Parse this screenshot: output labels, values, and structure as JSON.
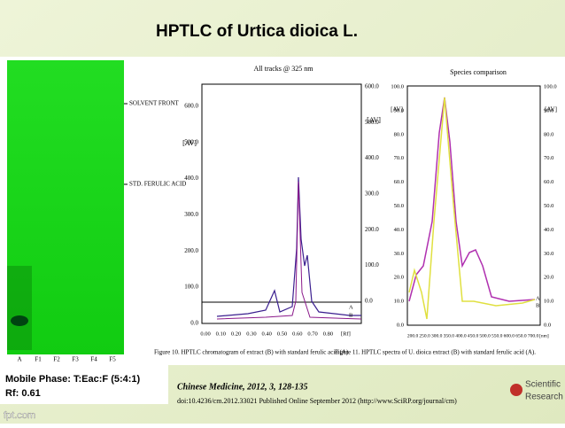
{
  "title": "HPTLC of Urtica dioica L.",
  "plate": {
    "markers": [
      "SOLVENT FRONT",
      "STD. FERULIC ACID"
    ],
    "lanes": [
      "A",
      "F1",
      "F2",
      "F3",
      "F4",
      "F5"
    ]
  },
  "figure10": {
    "title": "All tracks @ 325 nm",
    "y_label": "[AV]",
    "left_ticks": [
      "600.0",
      "500.0",
      "400.0",
      "300.0",
      "200.0",
      "100.0",
      "0.0"
    ],
    "right_ticks": [
      "600.0",
      "500.0",
      "400.0",
      "300.0",
      "200.0",
      "100.0",
      "0.0"
    ],
    "x_ticks": [
      "0.00",
      "0.10",
      "0.20",
      "0.30",
      "0.40",
      "0.50",
      "0.60",
      "0.70",
      "0.80"
    ],
    "x_unit": "[Rf]",
    "tracks": [
      "A",
      "B"
    ],
    "caption": "Figure 10. HPTLC chromatogram of extract (B) with standard ferulic acid (A)."
  },
  "figure11": {
    "title": "Species comparison",
    "y_label": "[AV]",
    "left_ticks": [
      "100.0",
      "90.0",
      "80.0",
      "70.0",
      "60.0",
      "50.0",
      "40.0",
      "30.0",
      "20.0",
      "10.0",
      "0.0"
    ],
    "right_ticks": [
      "100.0",
      "90.0",
      "80.0",
      "70.0",
      "60.0",
      "50.0",
      "40.0",
      "30.0",
      "20.0",
      "10.0",
      "0.0"
    ],
    "x_ticks": [
      "200.0",
      "250.0",
      "300.0",
      "350.0",
      "400.0",
      "450.0",
      "500.0",
      "550.0",
      "600.0",
      "650.0",
      "700.0"
    ],
    "x_unit": "[nm]",
    "tracks": [
      "A",
      "B"
    ],
    "caption": "Figure 11. HPTLC spectra of U. dioica extract (B) with standard ferulic acid (A)."
  },
  "mobile_phase": [
    "Mobile Phase: T:Eac:F (5:4:1)",
    "Rf: 0.61"
  ],
  "citation": {
    "journal": "Chinese Medicine, 2012, 3, 128-135",
    "doi": "doi:10.4236/cm.2012.33021 Published Online September 2012 (http://www.SciRP.org/journal/cm)"
  },
  "logo": [
    "Scientific",
    "Research"
  ],
  "watermark": "fpt.com"
}
